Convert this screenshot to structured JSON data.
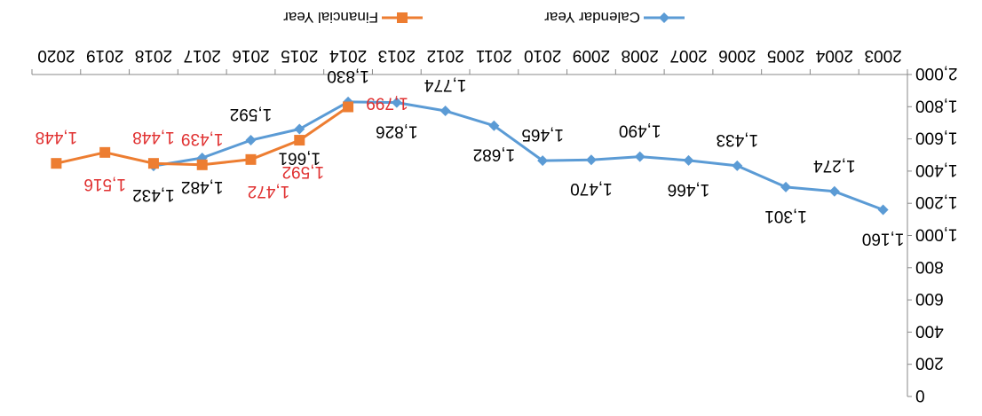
{
  "chart_data": {
    "type": "line",
    "orientation": "rotated 180 degrees",
    "x": [
      "2003",
      "2004",
      "2005",
      "2006",
      "2007",
      "2008",
      "2009",
      "2010",
      "2011",
      "2012",
      "2013",
      "2014",
      "2015",
      "2016",
      "2017",
      "2018",
      "2019",
      "2020"
    ],
    "ylim": [
      0,
      2000
    ],
    "y_reversed": true,
    "y_ticks": [
      "0",
      "200",
      "400",
      "600",
      "800",
      "1,000",
      "1,200",
      "1,400",
      "1,600",
      "1,800",
      "2,000"
    ],
    "y_tick_values": [
      0,
      200,
      400,
      600,
      800,
      1000,
      1200,
      1400,
      1600,
      1800,
      2000
    ],
    "grid": false,
    "legend_placement": "top",
    "series": [
      {
        "name": "Calendar Year",
        "color": "#5b9bd5",
        "marker": "diamond",
        "values": [
          1160,
          1274,
          1301,
          1433,
          1466,
          1490,
          1470,
          1465,
          1682,
          1774,
          1826,
          1830,
          1661,
          1592,
          1482,
          1432,
          null,
          null
        ],
        "labels": [
          "1,160",
          "1,274",
          "1,301",
          "1,433",
          "1,466",
          "1,490",
          "1,470",
          "1,465",
          "1,682",
          "1,774",
          "1,826",
          "1,830",
          "1,661",
          "1,592",
          "1,482",
          "1,432",
          "",
          ""
        ],
        "label_color": "#000000"
      },
      {
        "name": "Financial Year",
        "color": "#ed7d31",
        "marker": "square",
        "values": [
          null,
          null,
          null,
          null,
          null,
          null,
          null,
          null,
          null,
          null,
          null,
          1799,
          1592,
          1472,
          1439,
          1448,
          1516,
          1448
        ],
        "labels": [
          "",
          "",
          "",
          "",
          "",
          "",
          "",
          "",
          "",
          "",
          "",
          "1,799",
          "1,592",
          "1,472",
          "1,439",
          "1,448",
          "1,516",
          "1,448"
        ],
        "label_color": "#e03030"
      }
    ]
  }
}
